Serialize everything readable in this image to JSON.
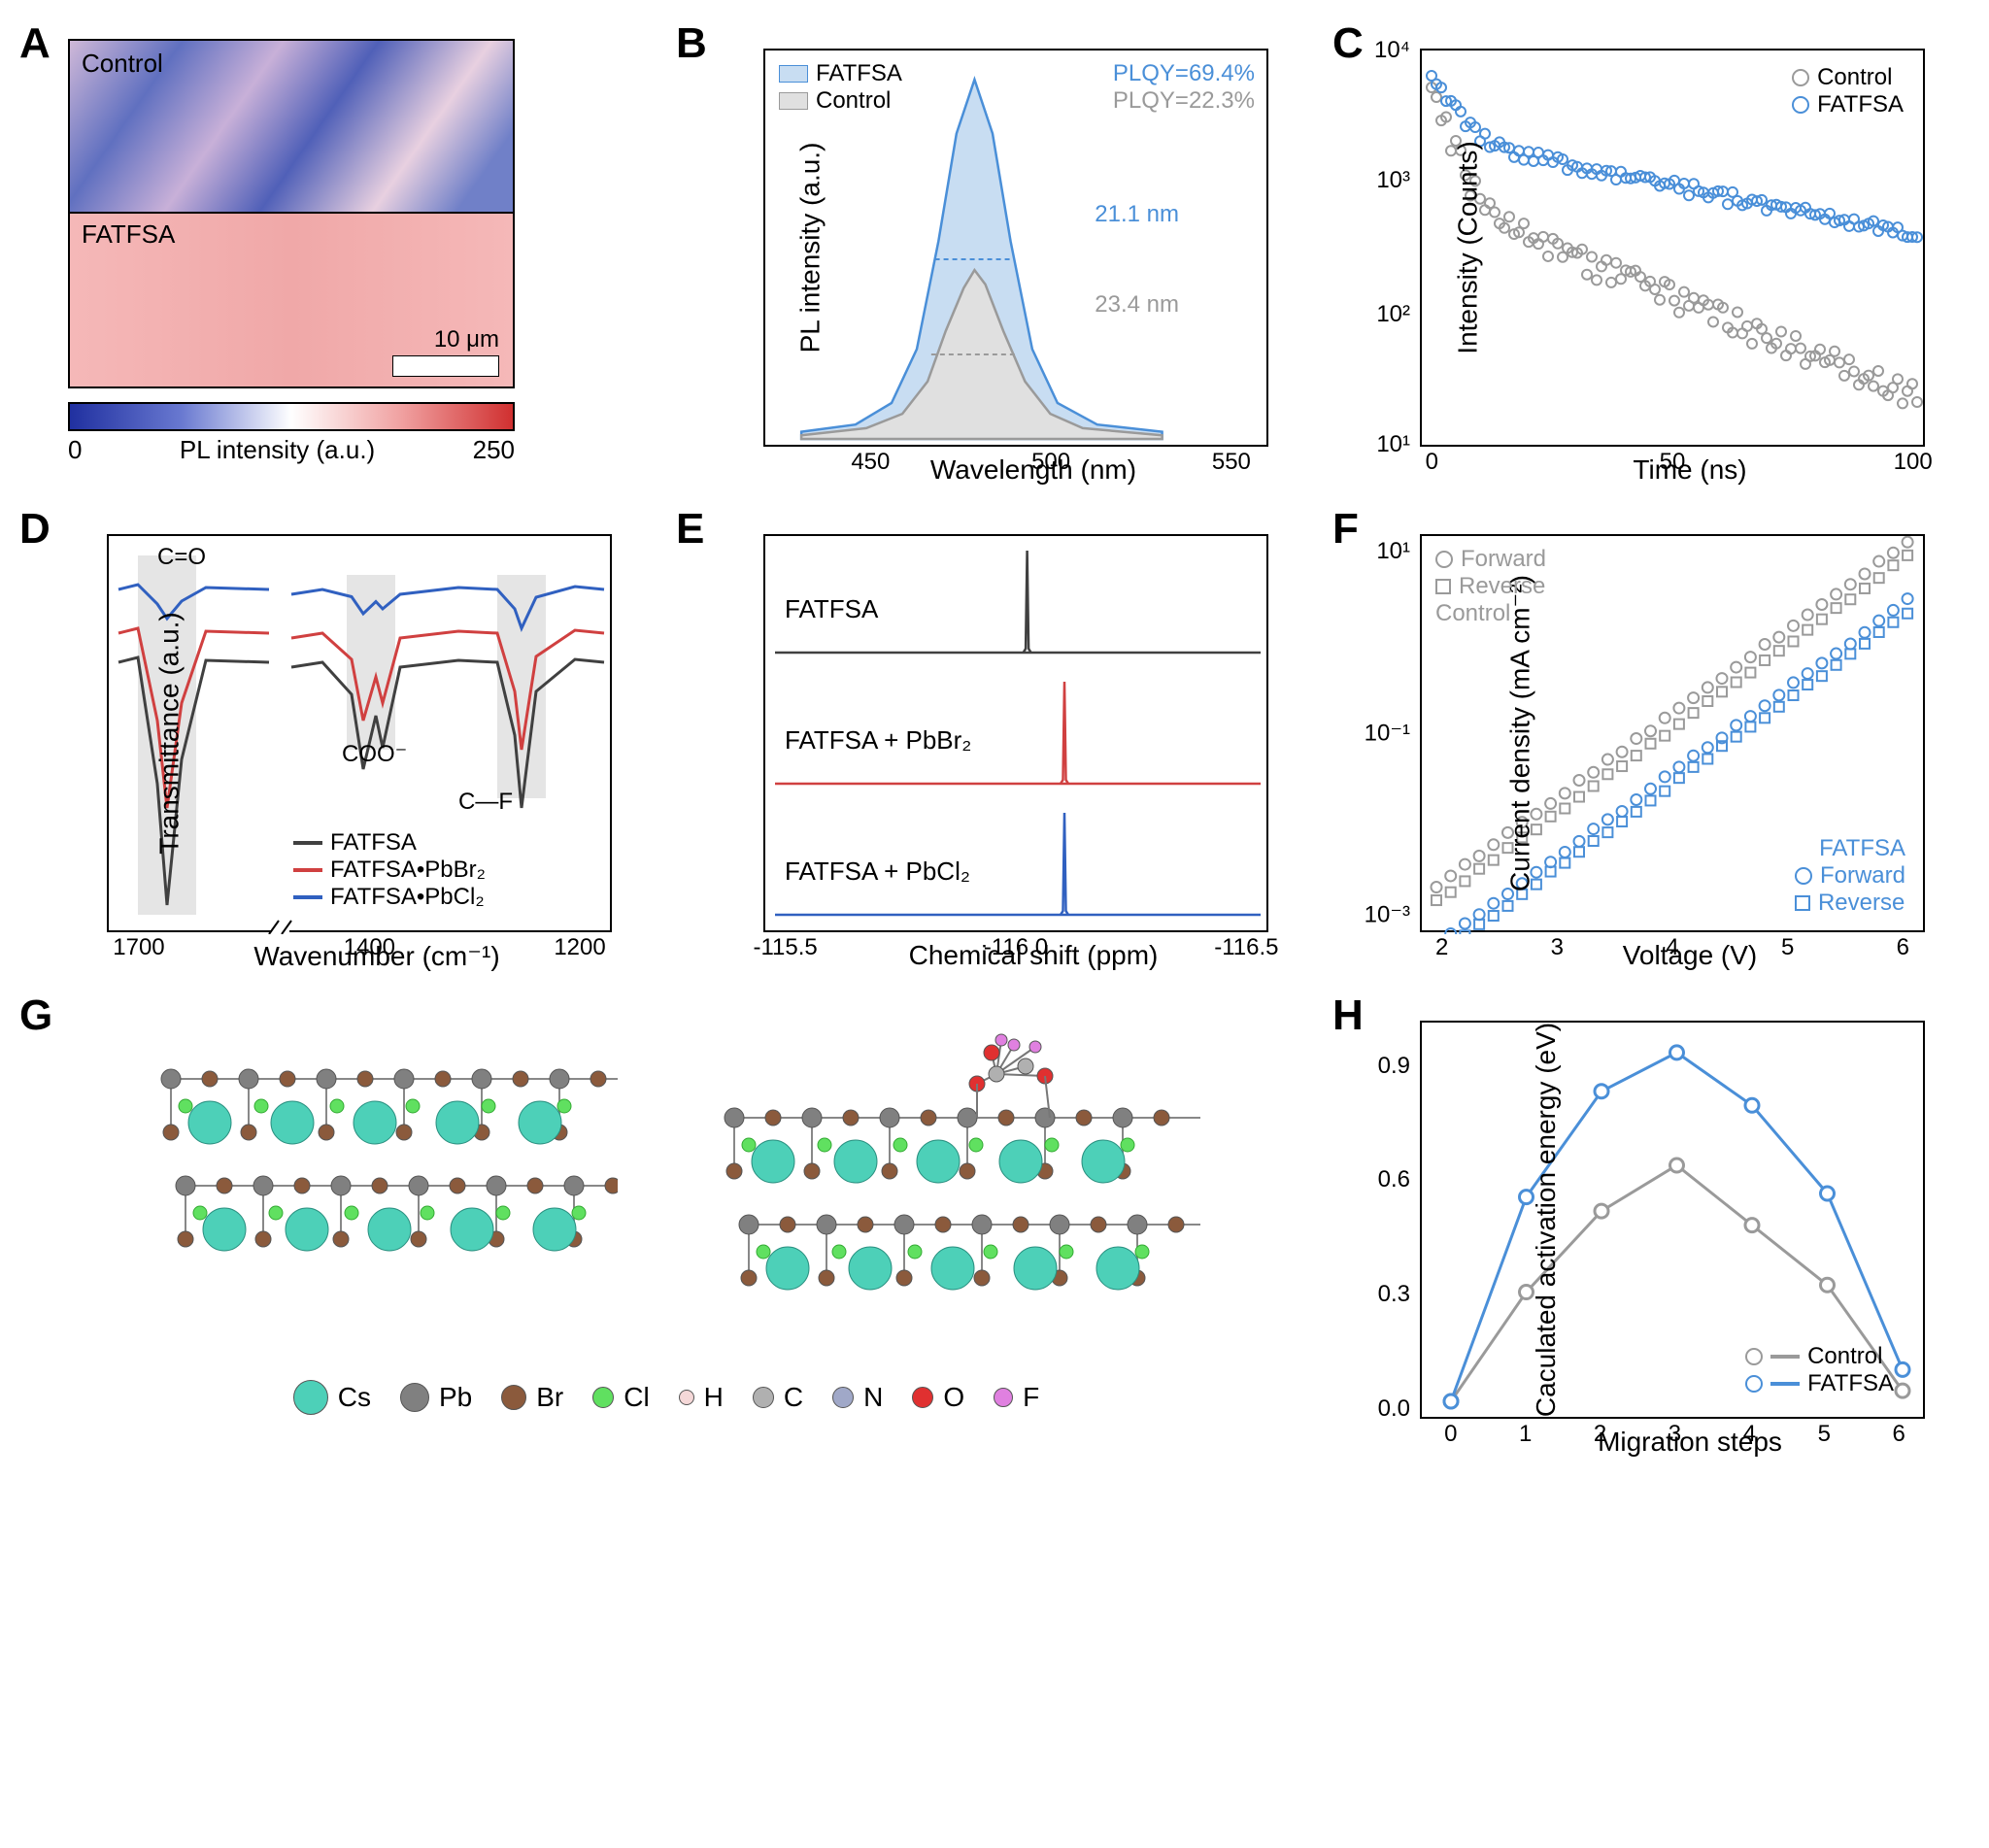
{
  "colors": {
    "control_gray": "#9a9a9a",
    "fatfsa_blue": "#4a8fd8",
    "black": "#000000",
    "red_line": "#d04040",
    "dark_gray_line": "#404040",
    "blue_line": "#3060c0"
  },
  "panelA": {
    "label": "A",
    "top_label": "Control",
    "bottom_label": "FATFSA",
    "scalebar_text": "10 μm",
    "colorbar_label": "PL intensity (a.u.)",
    "colorbar_min": "0",
    "colorbar_max": "250"
  },
  "panelB": {
    "label": "B",
    "type": "line",
    "xlabel": "Wavelength (nm)",
    "ylabel": "PL intensity (a.u.)",
    "xlim": [
      420,
      560
    ],
    "xticks": [
      450,
      500,
      550
    ],
    "legend": [
      {
        "name": "FATFSA",
        "color": "#4a8fd8",
        "fill": "#c8ddf2"
      },
      {
        "name": "Control",
        "color": "#9a9a9a",
        "fill": "#e0e0e0"
      }
    ],
    "annotations": {
      "plqy_fatfsa": "PLQY=69.4%",
      "plqy_control": "PLQY=22.3%",
      "fwhm_fatfsa": "21.1 nm",
      "fwhm_control": "23.4 nm"
    },
    "peak_center": 478,
    "series": {
      "fatfsa": [
        [
          430,
          0.02
        ],
        [
          445,
          0.04
        ],
        [
          455,
          0.1
        ],
        [
          462,
          0.25
        ],
        [
          468,
          0.55
        ],
        [
          473,
          0.85
        ],
        [
          478,
          1.0
        ],
        [
          483,
          0.85
        ],
        [
          488,
          0.55
        ],
        [
          494,
          0.25
        ],
        [
          501,
          0.1
        ],
        [
          512,
          0.04
        ],
        [
          530,
          0.02
        ]
      ],
      "control": [
        [
          430,
          0.01
        ],
        [
          448,
          0.03
        ],
        [
          458,
          0.07
        ],
        [
          465,
          0.16
        ],
        [
          470,
          0.3
        ],
        [
          475,
          0.42
        ],
        [
          478,
          0.47
        ],
        [
          481,
          0.43
        ],
        [
          486,
          0.3
        ],
        [
          492,
          0.16
        ],
        [
          499,
          0.07
        ],
        [
          508,
          0.03
        ],
        [
          530,
          0.01
        ]
      ]
    }
  },
  "panelC": {
    "label": "C",
    "type": "scatter-log",
    "xlabel": "Time (ns)",
    "ylabel": "Intensity (Counts)",
    "xlim": [
      0,
      100
    ],
    "xticks": [
      0,
      50,
      100
    ],
    "ylim": [
      1,
      10000
    ],
    "yticks_log": [
      1,
      2,
      3,
      4
    ],
    "ytick_labels": [
      "10¹",
      "10²",
      "10³",
      "10⁴"
    ],
    "legend": [
      {
        "name": "Control",
        "color": "#9a9a9a",
        "marker": "circle"
      },
      {
        "name": "FATFSA",
        "color": "#4a8fd8",
        "marker": "circle"
      }
    ]
  },
  "panelD": {
    "label": "D",
    "type": "line",
    "xlabel": "Wavenumber (cm⁻¹)",
    "ylabel": "Transmittance (a.u.)",
    "xticks": [
      1700,
      1400,
      1200
    ],
    "annotations": {
      "co": "C=O",
      "coo": "COO⁻",
      "cf": "C—F"
    },
    "legend": [
      {
        "name": "FATFSA",
        "color": "#404040"
      },
      {
        "name": "FATFSA•PbBr₂",
        "color": "#d04040"
      },
      {
        "name": "FATFSA•PbCl₂",
        "color": "#3060c0"
      }
    ]
  },
  "panelE": {
    "label": "E",
    "type": "stacked-line",
    "xlabel": "Chemical shift (ppm)",
    "xlim": [
      -115.5,
      -116.5
    ],
    "xticks": [
      -115.5,
      -116.0,
      -116.5
    ],
    "traces": [
      {
        "name": "FATFSA",
        "color": "#404040",
        "peak_x": -116.02
      },
      {
        "name": "FATFSA + PbBr₂",
        "color": "#d04040",
        "peak_x": -116.1
      },
      {
        "name": "FATFSA + PbCl₂",
        "color": "#3060c0",
        "peak_x": -116.1
      }
    ]
  },
  "panelF": {
    "label": "F",
    "type": "scatter-log",
    "xlabel": "Voltage (V)",
    "ylabel": "Current density (mA cm⁻²)",
    "xlim": [
      2,
      6
    ],
    "xticks": [
      2,
      3,
      4,
      5,
      6
    ],
    "ylim_log": [
      -3,
      1
    ],
    "ytick_labels": [
      "10⁻³",
      "10⁻¹",
      "10¹"
    ],
    "groups": [
      {
        "name": "Control",
        "color": "#9a9a9a",
        "items": [
          {
            "name": "Forward",
            "marker": "circle"
          },
          {
            "name": "Reverse",
            "marker": "square"
          }
        ]
      },
      {
        "name": "FATFSA",
        "color": "#4a8fd8",
        "items": [
          {
            "name": "Forward",
            "marker": "circle"
          },
          {
            "name": "Reverse",
            "marker": "square"
          }
        ]
      }
    ]
  },
  "panelG": {
    "label": "G",
    "atoms": [
      {
        "el": "Cs",
        "color": "#4dd0b8",
        "size": 36
      },
      {
        "el": "Pb",
        "color": "#808080",
        "size": 30
      },
      {
        "el": "Br",
        "color": "#8b5a3c",
        "size": 26
      },
      {
        "el": "Cl",
        "color": "#60e060",
        "size": 22
      },
      {
        "el": "H",
        "color": "#f5d8d8",
        "size": 16
      },
      {
        "el": "C",
        "color": "#b0b0b0",
        "size": 22
      },
      {
        "el": "N",
        "color": "#a0a8c8",
        "size": 22
      },
      {
        "el": "O",
        "color": "#e03030",
        "size": 22
      },
      {
        "el": "F",
        "color": "#e080e0",
        "size": 20
      }
    ]
  },
  "panelH": {
    "label": "H",
    "type": "line-marker",
    "xlabel": "Migration steps",
    "ylabel": "Caculated activation energy (eV)",
    "xlim": [
      0,
      6
    ],
    "xticks": [
      0,
      1,
      2,
      3,
      4,
      5,
      6
    ],
    "ylim": [
      0,
      1.0
    ],
    "yticks": [
      0.0,
      0.3,
      0.6,
      0.9
    ],
    "series": [
      {
        "name": "Control",
        "color": "#9a9a9a",
        "data": [
          [
            0,
            0.0
          ],
          [
            1,
            0.31
          ],
          [
            2,
            0.54
          ],
          [
            3,
            0.67
          ],
          [
            4,
            0.5
          ],
          [
            5,
            0.33
          ],
          [
            6,
            0.03
          ]
        ]
      },
      {
        "name": "FATFSA",
        "color": "#4a8fd8",
        "data": [
          [
            0,
            0.0
          ],
          [
            1,
            0.58
          ],
          [
            2,
            0.88
          ],
          [
            3,
            0.99
          ],
          [
            4,
            0.84
          ],
          [
            5,
            0.59
          ],
          [
            6,
            0.09
          ]
        ]
      }
    ]
  }
}
